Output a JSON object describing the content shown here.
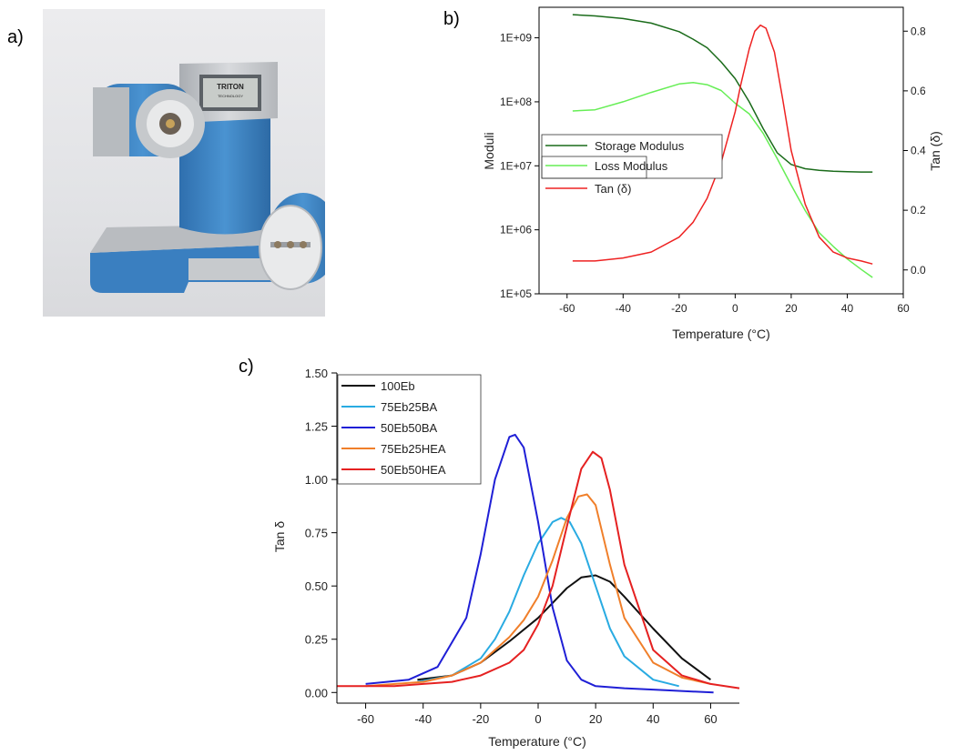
{
  "panels": {
    "a": "a)",
    "b": "b)",
    "c": "c)"
  },
  "photo": {
    "brand": "TRITON",
    "brand_sub": "TECHNOLOGY",
    "colors": {
      "blue": "#3f86c6",
      "silver": "#c9ccd0",
      "background": "#e6e7e9"
    }
  },
  "chart_data": [
    {
      "id": "b",
      "type": "line",
      "xlabel": "Temperature (°C)",
      "ylabel": "Moduli",
      "y2label": "Tan (δ)",
      "xlim": [
        -70,
        60
      ],
      "xticks": [
        -60,
        -40,
        -20,
        0,
        20,
        40,
        60
      ],
      "ylim": [
        100000,
        3000000000
      ],
      "yscale": "log",
      "yticks": [
        100000,
        1000000,
        10000000,
        100000000,
        1000000000
      ],
      "ytick_labels": [
        "1E+05",
        "1E+06",
        "1E+07",
        "1E+08",
        "1E+09"
      ],
      "y2lim": [
        -0.08,
        0.88
      ],
      "y2ticks": [
        0.0,
        0.2,
        0.4,
        0.6,
        0.8
      ],
      "y2tick_labels": [
        "0.0",
        "0.2",
        "0.4",
        "0.6",
        "0.8"
      ],
      "legend_position": "center-left",
      "series": [
        {
          "name": "Storage Modulus",
          "color": "#1a6b1a",
          "axis": "left",
          "x": [
            -58,
            -50,
            -40,
            -30,
            -20,
            -15,
            -10,
            -5,
            0,
            5,
            10,
            15,
            20,
            25,
            30,
            35,
            40,
            45,
            49
          ],
          "y": [
            2300000000.0,
            2200000000.0,
            2000000000.0,
            1700000000.0,
            1250000000.0,
            950000000.0,
            700000000.0,
            420000000.0,
            230000000.0,
            100000000.0,
            38000000.0,
            16000000.0,
            10500000.0,
            9000000.0,
            8500000.0,
            8200000.0,
            8100000.0,
            8000000.0,
            8000000.0
          ]
        },
        {
          "name": "Loss Modulus",
          "color": "#66ee55",
          "axis": "left",
          "x": [
            -58,
            -50,
            -40,
            -30,
            -20,
            -15,
            -10,
            -5,
            0,
            5,
            10,
            15,
            20,
            25,
            30,
            35,
            40,
            45,
            49
          ],
          "y": [
            72000000.0,
            75000000.0,
            100000000.0,
            140000000.0,
            190000000.0,
            200000000.0,
            185000000.0,
            150000000.0,
            95000000.0,
            65000000.0,
            32000000.0,
            13000000.0,
            5000000.0,
            2000000.0,
            900000.0,
            550000.0,
            350000.0,
            240000.0,
            180000.0
          ]
        },
        {
          "name": "Tan (δ)",
          "color": "#ee2222",
          "axis": "right",
          "x": [
            -58,
            -50,
            -40,
            -30,
            -20,
            -15,
            -10,
            -5,
            0,
            2,
            5,
            7,
            9,
            11,
            14,
            17,
            20,
            25,
            30,
            35,
            40,
            45,
            49
          ],
          "y": [
            0.03,
            0.03,
            0.04,
            0.06,
            0.11,
            0.16,
            0.24,
            0.36,
            0.53,
            0.62,
            0.74,
            0.8,
            0.82,
            0.81,
            0.73,
            0.57,
            0.4,
            0.22,
            0.11,
            0.06,
            0.04,
            0.03,
            0.02
          ]
        }
      ]
    },
    {
      "id": "c",
      "type": "line",
      "xlabel": "Temperature (°C)",
      "ylabel": "Tan δ",
      "xlim": [
        -70,
        70
      ],
      "xticks": [
        -60,
        -40,
        -20,
        0,
        20,
        40,
        60
      ],
      "ylim": [
        -0.05,
        1.5
      ],
      "yticks": [
        0.0,
        0.25,
        0.5,
        0.75,
        1.0,
        1.25,
        1.5
      ],
      "ytick_labels": [
        "0.00",
        "0.25",
        "0.50",
        "0.75",
        "1.00",
        "1.25",
        "1.50"
      ],
      "legend_position": "top-left",
      "series": [
        {
          "name": "100Eb",
          "color": "#111111",
          "x": [
            -42,
            -30,
            -20,
            -10,
            0,
            5,
            10,
            15,
            20,
            25,
            30,
            40,
            50,
            60
          ],
          "y": [
            0.06,
            0.08,
            0.14,
            0.24,
            0.35,
            0.42,
            0.49,
            0.54,
            0.55,
            0.52,
            0.45,
            0.3,
            0.16,
            0.06
          ]
        },
        {
          "name": "75Eb25BA",
          "color": "#29abe2",
          "x": [
            -42,
            -30,
            -20,
            -15,
            -10,
            -5,
            0,
            5,
            8,
            11,
            15,
            20,
            25,
            30,
            40,
            49
          ],
          "y": [
            0.05,
            0.08,
            0.16,
            0.25,
            0.38,
            0.55,
            0.7,
            0.8,
            0.82,
            0.8,
            0.7,
            0.5,
            0.3,
            0.17,
            0.06,
            0.03
          ]
        },
        {
          "name": "50Eb50BA",
          "color": "#1f1fd6",
          "x": [
            -60,
            -45,
            -35,
            -25,
            -20,
            -15,
            -10,
            -8,
            -5,
            0,
            5,
            10,
            15,
            20,
            30,
            45,
            61
          ],
          "y": [
            0.04,
            0.06,
            0.12,
            0.35,
            0.65,
            1.0,
            1.2,
            1.21,
            1.15,
            0.8,
            0.4,
            0.15,
            0.06,
            0.03,
            0.02,
            0.01,
            0.0
          ]
        },
        {
          "name": "75Eb25HEA",
          "color": "#f07f2a",
          "x": [
            -60,
            -40,
            -30,
            -20,
            -10,
            -5,
            0,
            5,
            10,
            14,
            17,
            20,
            25,
            30,
            40,
            50,
            60
          ],
          "y": [
            0.03,
            0.05,
            0.08,
            0.14,
            0.26,
            0.34,
            0.45,
            0.62,
            0.82,
            0.92,
            0.93,
            0.88,
            0.6,
            0.35,
            0.14,
            0.07,
            0.04
          ]
        },
        {
          "name": "50Eb50HEA",
          "color": "#e52121",
          "x": [
            -70,
            -50,
            -40,
            -30,
            -20,
            -10,
            -5,
            0,
            5,
            10,
            15,
            19,
            22,
            25,
            30,
            40,
            50,
            60,
            70
          ],
          "y": [
            0.03,
            0.03,
            0.04,
            0.05,
            0.08,
            0.14,
            0.2,
            0.32,
            0.5,
            0.78,
            1.05,
            1.13,
            1.1,
            0.95,
            0.6,
            0.2,
            0.08,
            0.04,
            0.02
          ]
        }
      ]
    }
  ]
}
